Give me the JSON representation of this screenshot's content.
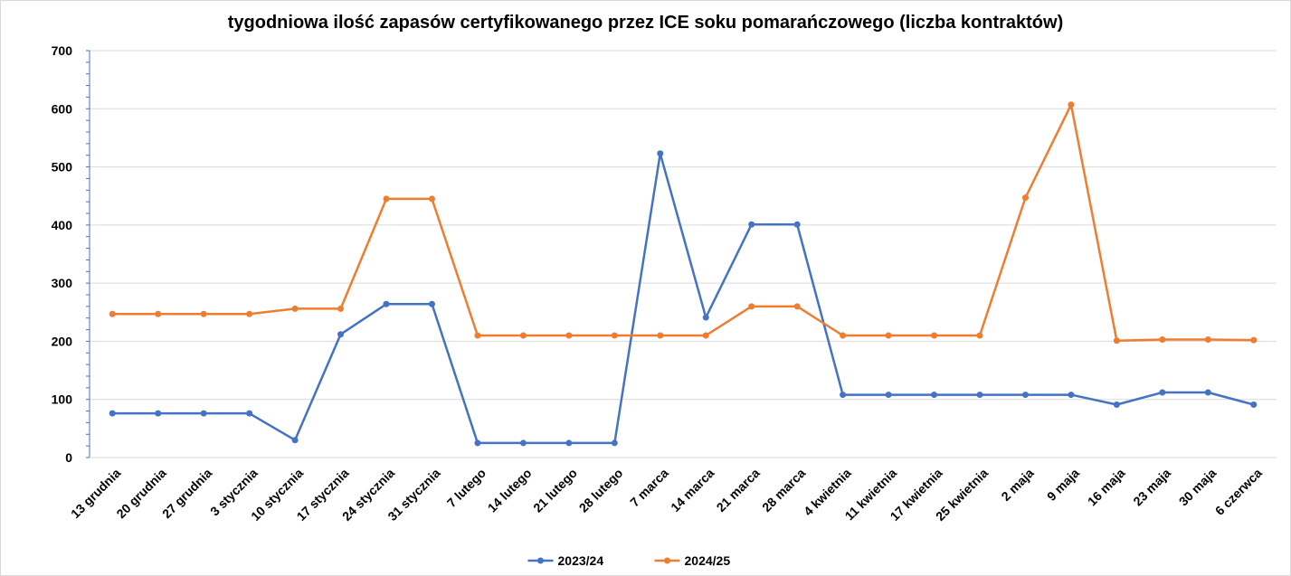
{
  "chart_data": {
    "type": "line",
    "title": "tygodniowa ilość zapasów certyfikowanego przez ICE soku pomarańczowego (liczba kontraktów)",
    "xlabel": "",
    "ylabel": "",
    "ylim": [
      0,
      700
    ],
    "yticks": [
      0,
      100,
      200,
      300,
      400,
      500,
      600,
      700
    ],
    "grid": "horizontal",
    "legend_position": "bottom",
    "categories": [
      "13 grudnia",
      "20 grudnia",
      "27 grudnia",
      "3 stycznia",
      "10 stycznia",
      "17 stycznia",
      "24 stycznia",
      "31 stycznia",
      "7 lutego",
      "14 lutego",
      "21 lutego",
      "28 lutego",
      "7 marca",
      "14 marca",
      "21 marca",
      "28 marca",
      "4 kwietnia",
      "11 kwietnia",
      "17 kwietnia",
      "25 kwietnia",
      "2 maja",
      "9 maja",
      "16 maja",
      "23 maja",
      "30 maja",
      "6 czerwca"
    ],
    "series": [
      {
        "name": "2023/24",
        "color": "#4472c4",
        "values": [
          76,
          76,
          76,
          76,
          30,
          212,
          264,
          264,
          25,
          25,
          25,
          25,
          523,
          241,
          401,
          401,
          108,
          108,
          108,
          108,
          108,
          108,
          91,
          112,
          112,
          91
        ]
      },
      {
        "name": "2024/25",
        "color": "#ed7d31",
        "values": [
          247,
          247,
          247,
          247,
          256,
          256,
          445,
          445,
          210,
          210,
          210,
          210,
          210,
          210,
          260,
          260,
          210,
          210,
          210,
          210,
          447,
          607,
          201,
          203,
          203,
          202
        ]
      }
    ]
  }
}
